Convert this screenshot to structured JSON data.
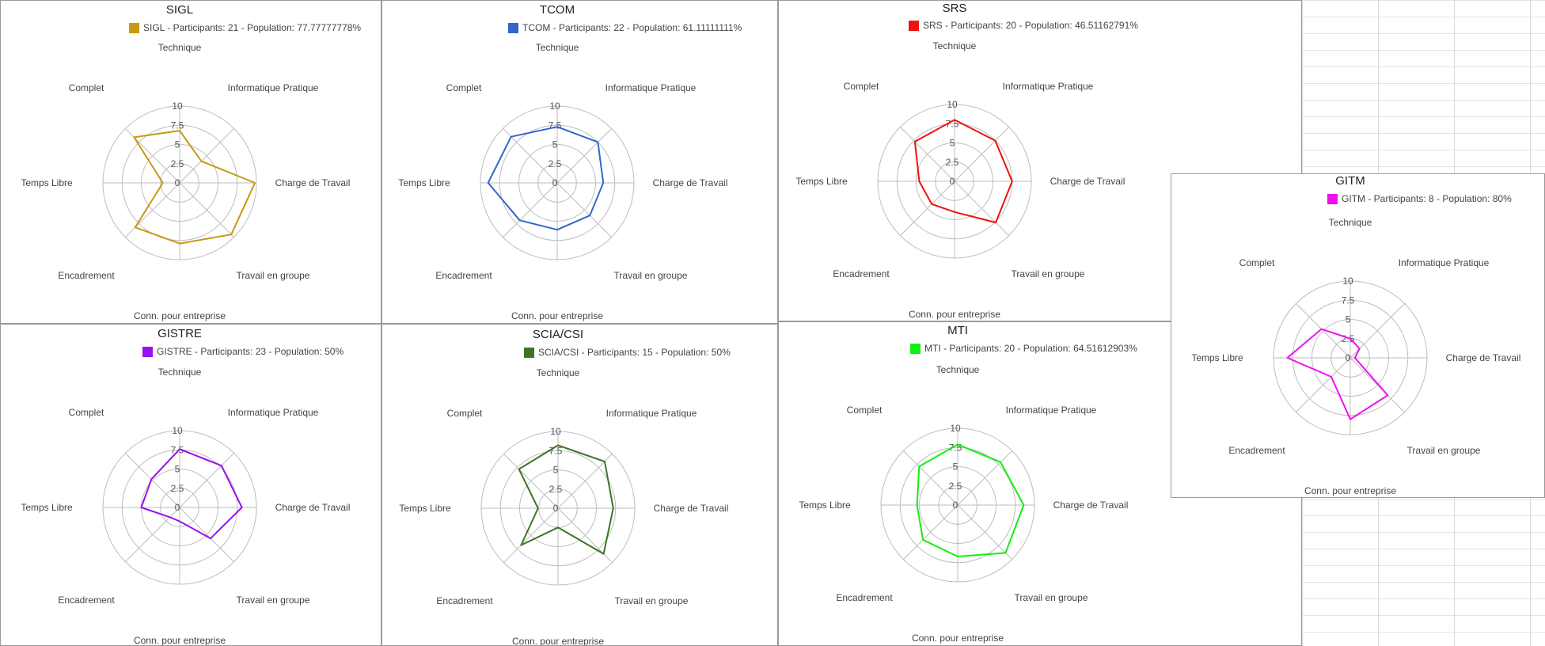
{
  "axes": [
    "Technique",
    "Informatique Pratique",
    "Charge de Travail",
    "Travail en groupe",
    "Conn. pour entreprise",
    "Encadrement",
    "Temps Libre",
    "Complet"
  ],
  "tick_labels": [
    "0",
    "2.5",
    "5",
    "7.5",
    "10"
  ],
  "chart_data": [
    {
      "type": "radar",
      "title": "SIGL",
      "color": "#c49a12",
      "rmax": 10,
      "legend": "SIGL - Participants: 21 - Population: 77.77777778%",
      "categories": [
        "Technique",
        "Informatique Pratique",
        "Charge de Travail",
        "Travail en groupe",
        "Conn. pour entreprise",
        "Encadrement",
        "Temps Libre",
        "Complet"
      ],
      "values": [
        6.8,
        4.0,
        9.8,
        9.5,
        7.9,
        8.2,
        2.2,
        8.4
      ]
    },
    {
      "type": "radar",
      "title": "TCOM",
      "color": "#3366cc",
      "rmax": 10,
      "legend": "TCOM - Participants: 22 - Population: 61.11111111%",
      "categories": [
        "Technique",
        "Informatique Pratique",
        "Charge de Travail",
        "Travail en groupe",
        "Conn. pour entreprise",
        "Encadrement",
        "Temps Libre",
        "Complet"
      ],
      "values": [
        7.3,
        7.5,
        6.0,
        6.0,
        6.1,
        6.9,
        9.0,
        8.5
      ]
    },
    {
      "type": "radar",
      "title": "SRS",
      "color": "#ee1111",
      "rmax": 10,
      "legend": "SRS - Participants: 20 - Population: 46.51162791%",
      "categories": [
        "Technique",
        "Informatique Pratique",
        "Charge de Travail",
        "Travail en groupe",
        "Conn. pour entreprise",
        "Encadrement",
        "Temps Libre",
        "Complet"
      ],
      "values": [
        8.0,
        7.5,
        7.5,
        7.6,
        4.0,
        4.2,
        4.6,
        7.3
      ]
    },
    {
      "type": "radar",
      "title": "GISTRE",
      "color": "#9911ee",
      "rmax": 10,
      "legend": "GISTRE - Participants: 23 - Population: 50%",
      "categories": [
        "Technique",
        "Informatique Pratique",
        "Charge de Travail",
        "Travail en groupe",
        "Conn. pour entreprise",
        "Encadrement",
        "Temps Libre",
        "Complet"
      ],
      "values": [
        7.6,
        7.7,
        8.1,
        5.7,
        1.8,
        1.8,
        5.0,
        5.2
      ]
    },
    {
      "type": "radar",
      "title": "SCIA/CSI",
      "color": "#3d7527",
      "rmax": 10,
      "legend": "SCIA/CSI - Participants: 15 - Population: 50%",
      "categories": [
        "Technique",
        "Informatique Pratique",
        "Charge de Travail",
        "Travail en groupe",
        "Conn. pour entreprise",
        "Encadrement",
        "Temps Libre",
        "Complet"
      ],
      "values": [
        8.2,
        8.6,
        7.2,
        8.4,
        2.5,
        6.8,
        2.6,
        7.2
      ]
    },
    {
      "type": "radar",
      "title": "MTI",
      "color": "#11ee11",
      "rmax": 10,
      "legend": "MTI - Participants: 20 - Population: 64.51612903%",
      "categories": [
        "Technique",
        "Informatique Pratique",
        "Charge de Travail",
        "Travail en groupe",
        "Conn. pour entreprise",
        "Encadrement",
        "Temps Libre",
        "Complet"
      ],
      "values": [
        7.9,
        7.9,
        8.6,
        8.8,
        6.7,
        6.4,
        5.3,
        7.1
      ]
    },
    {
      "type": "radar",
      "title": "GITM",
      "color": "#ee11ee",
      "rmax": 10,
      "legend": "GITM - Participants: 8 - Population: 80%",
      "categories": [
        "Technique",
        "Informatique Pratique",
        "Charge de Travail",
        "Travail en groupe",
        "Conn. pour entreprise",
        "Encadrement",
        "Temps Libre",
        "Complet"
      ],
      "values": [
        2.5,
        1.7,
        0.6,
        6.9,
        8.0,
        3.5,
        8.2,
        5.3
      ]
    }
  ]
}
